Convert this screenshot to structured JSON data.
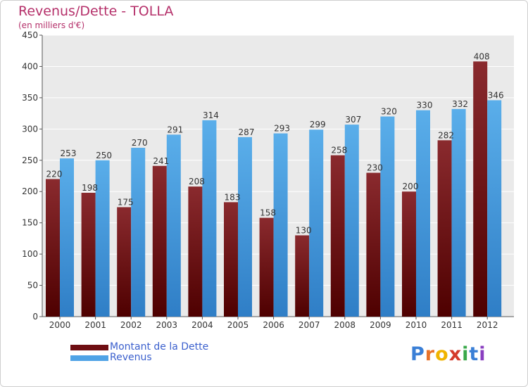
{
  "header": {
    "title": "Revenus/Dette - TOLLA",
    "subtitle": "(en milliers d'€)"
  },
  "legend": {
    "items": [
      {
        "label": "Montant de la Dette",
        "color": "#7a1418"
      },
      {
        "label": "Revenus",
        "color": "#4fa3e6"
      }
    ]
  },
  "logo": {
    "letters": [
      "P",
      "r",
      "o",
      "x",
      "i",
      "t",
      "i"
    ],
    "colors": [
      "#3a7fd6",
      "#e8732a",
      "#f0b400",
      "#d43a2a",
      "#3aa84a",
      "#3a7fd6",
      "#8a3fc0"
    ]
  },
  "chart_data": {
    "type": "bar",
    "categories": [
      "2000",
      "2001",
      "2002",
      "2003",
      "2004",
      "2005",
      "2006",
      "2007",
      "2008",
      "2009",
      "2010",
      "2011",
      "2012"
    ],
    "series": [
      {
        "name": "Montant de la Dette",
        "values": [
          220,
          198,
          175,
          241,
          208,
          183,
          158,
          130,
          258,
          230,
          200,
          282,
          408
        ]
      },
      {
        "name": "Revenus",
        "values": [
          253,
          250,
          270,
          291,
          314,
          287,
          293,
          299,
          307,
          320,
          330,
          332,
          346
        ]
      }
    ],
    "ylim": [
      0,
      450
    ],
    "yticks": [
      0,
      50,
      100,
      150,
      200,
      250,
      300,
      350,
      400,
      450
    ],
    "grid": true,
    "legend_position": "bottom-left"
  }
}
